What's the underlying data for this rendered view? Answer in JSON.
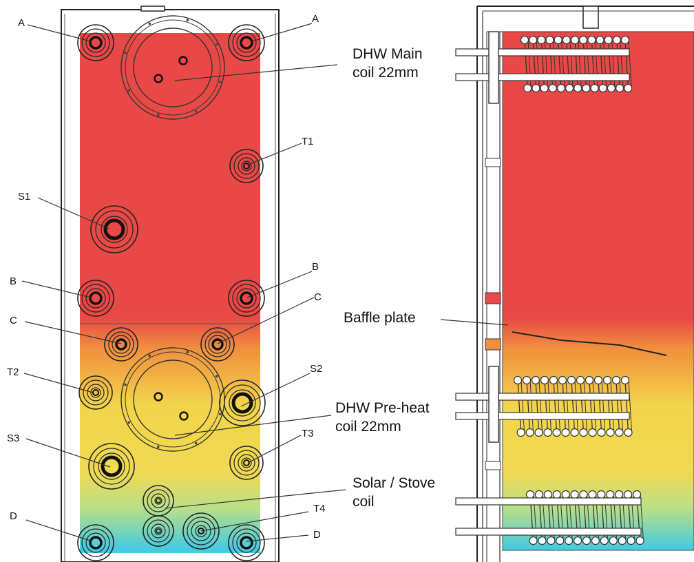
{
  "colors": {
    "hot": "#e84846",
    "warm_orange": "#f0903e",
    "warm_yellow": "#f2d44a",
    "pale_green": "#b9df88",
    "cool": "#47cbe0",
    "outline": "#222222",
    "leader": "#333333"
  },
  "front_view": {
    "labels": {
      "a_left": "A",
      "a_right": "A",
      "t1": "T1",
      "s1": "S1",
      "b_left": "B",
      "b_right": "B",
      "c_left": "C",
      "c_right": "C",
      "t2": "T2",
      "s2": "S2",
      "s3": "S3",
      "t3": "T3",
      "t4": "T4",
      "d_left": "D",
      "d_right": "D"
    }
  },
  "side_view": {
    "labels": {
      "dhw_main_line1": "DHW Main",
      "dhw_main_line2": "coil 22mm",
      "baffle_plate": "Baffle plate",
      "dhw_preheat_line1": "DHW Pre-heat",
      "dhw_preheat_line2": "coil 22mm",
      "solar_stove_line1": "Solar / Stove",
      "solar_stove_line2": "coil"
    }
  }
}
